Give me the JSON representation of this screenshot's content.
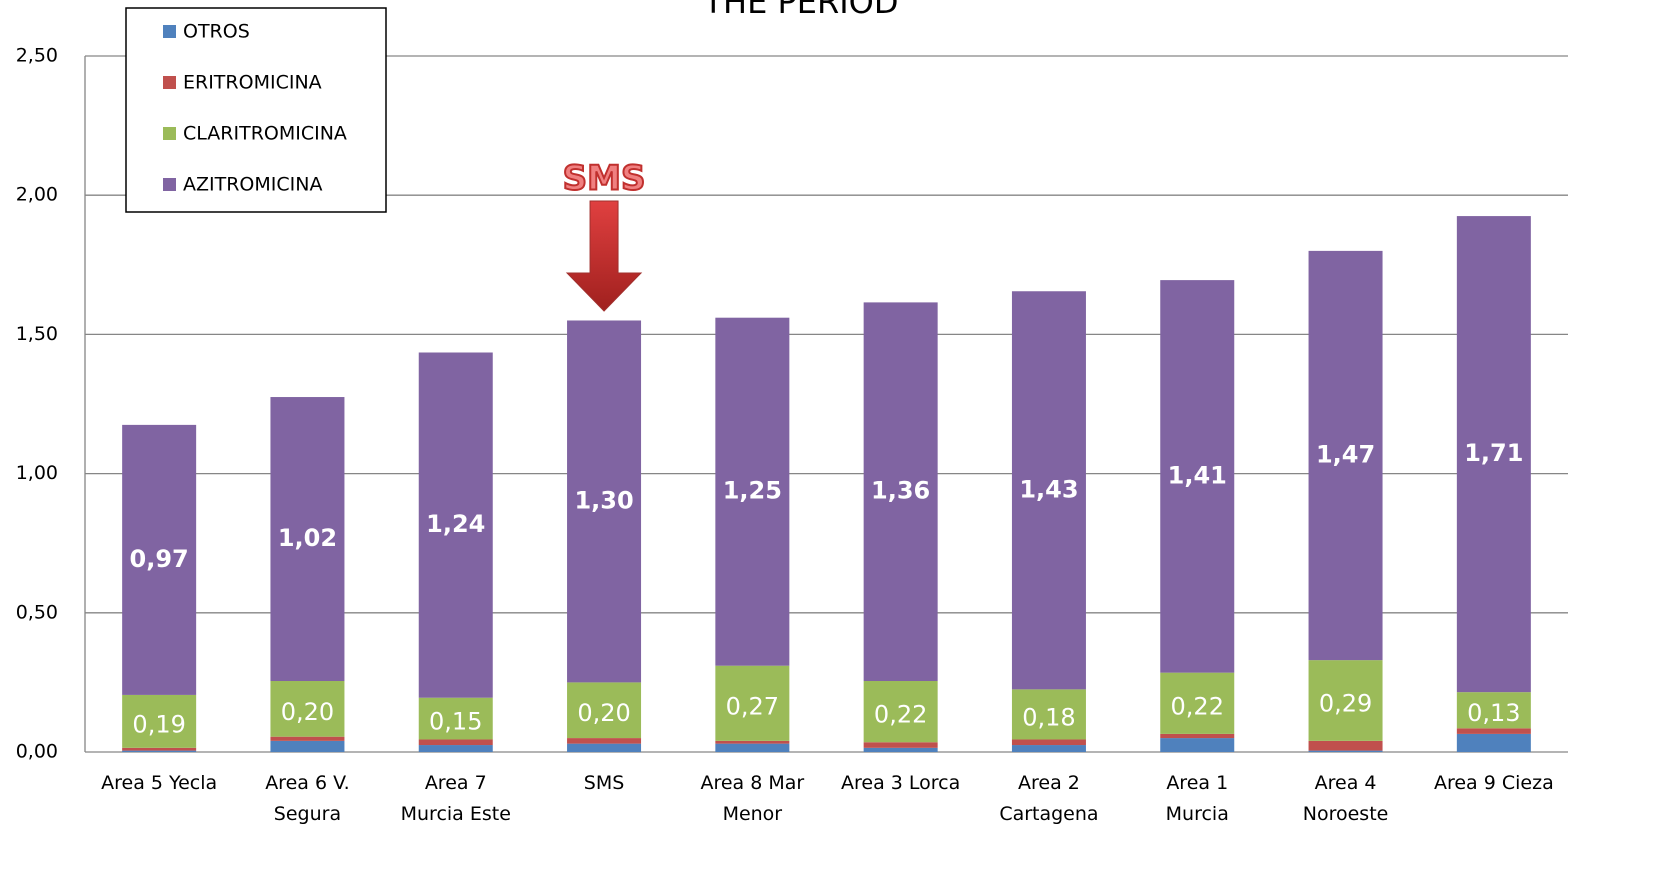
{
  "chart_data": {
    "type": "stacked_bar",
    "title": "THE PERIOD",
    "categories": [
      "Area 5 Yecla",
      "Area 6 V. Segura",
      "Area 7 Murcia Este",
      "SMS",
      "Area 8 Mar Menor",
      "Area 3 Lorca",
      "Area 2 Cartagena",
      "Area 1 Murcia",
      "Area 4 Noroeste",
      "Area 9 Cieza"
    ],
    "series": [
      {
        "name": "OTROS",
        "color": "#4f81bd",
        "values": [
          0.005,
          0.04,
          0.025,
          0.03,
          0.03,
          0.015,
          0.025,
          0.05,
          0.005,
          0.065
        ]
      },
      {
        "name": "ERITROMICINA",
        "color": "#c0504d",
        "values": [
          0.01,
          0.015,
          0.02,
          0.02,
          0.01,
          0.02,
          0.02,
          0.015,
          0.035,
          0.02
        ]
      },
      {
        "name": "CLARITROMICINA",
        "color": "#9bbb59",
        "values": [
          0.19,
          0.2,
          0.15,
          0.2,
          0.27,
          0.22,
          0.18,
          0.22,
          0.29,
          0.13
        ],
        "value_labels": [
          "0,19",
          "0,20",
          "0,15",
          "0,20",
          "0,27",
          "0,22",
          "0,18",
          "0,22",
          "0,29",
          "0,13"
        ]
      },
      {
        "name": "AZITROMICINA",
        "color": "#8064a2",
        "values": [
          0.97,
          1.02,
          1.24,
          1.3,
          1.25,
          1.36,
          1.43,
          1.41,
          1.47,
          1.71
        ],
        "value_labels": [
          "0,97",
          "1,02",
          "1,24",
          "1,30",
          "1,25",
          "1,36",
          "1,43",
          "1,41",
          "1,47",
          "1,71"
        ]
      }
    ],
    "ylim": [
      0,
      2.5
    ],
    "yticks": [
      {
        "value": 0,
        "label": "0,00"
      },
      {
        "value": 0.5,
        "label": "0,50"
      },
      {
        "value": 1,
        "label": "1,00"
      },
      {
        "value": 1.5,
        "label": "1,50"
      },
      {
        "value": 2,
        "label": "2,00"
      },
      {
        "value": 2.5,
        "label": "2,50"
      }
    ],
    "grid": true,
    "legend": "top-left",
    "annotation": "SMS"
  }
}
